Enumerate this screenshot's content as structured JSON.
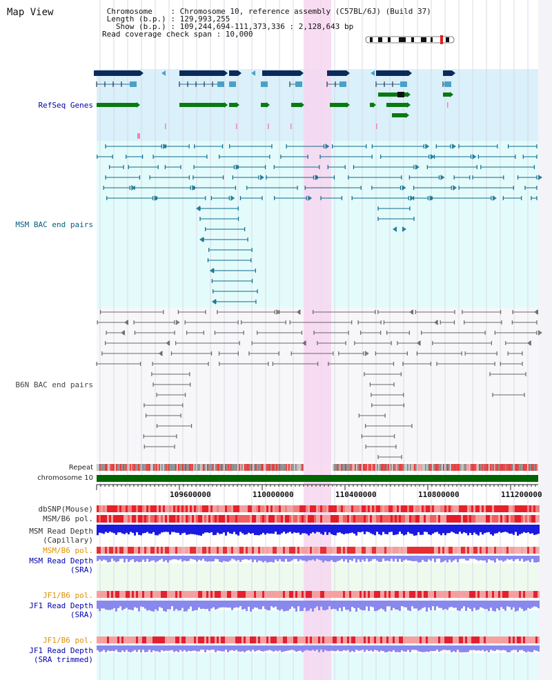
{
  "header": {
    "title": "Map View",
    "chromosome_line": " Chromosome    : Chromosome 10, reference assembly (C57BL/6J) (Build 37)",
    "length_line": " Length (b.p.) : 129,993,255",
    "show_line": "   Show (b.p.) : 109,244,694-111,373,336 : 2,128,643 bp",
    "coverage_line": "Read coverage check span : 10,000"
  },
  "tracks": {
    "refseq": "RefSeq Genes",
    "msm_bac": "MSM BAC end pairs",
    "b6n_bac": "B6N BAC end pairs",
    "repeat": "Repeat",
    "chromosome": "chromosome 10",
    "dbsnp": "dbSNP(Mouse)",
    "msm_b6_pol_1": "MSM/B6 pol.",
    "msm_read_depth_cap": "MSM Read Depth\n(Capillary)",
    "msm_b6_pol_2": "MSM/B6 pol.",
    "msm_read_depth_sra": "MSM Read Depth\n(SRA)",
    "jf1_b6_pol_1": "JF1/B6 pol.",
    "jf1_read_depth_sra": "JF1 Read Depth\n(SRA)",
    "jf1_b6_pol_2": "JF1/B6 pol.",
    "jf1_read_depth_trim": "JF1 Read Depth\n(SRA trimmed)"
  },
  "axis": {
    "ticks": [
      "109600000",
      "110000000",
      "110400000",
      "110800000",
      "111200000"
    ]
  },
  "colors": {
    "refseq_bg": "#daf0fa",
    "msm_bg": "#e4fbfb",
    "b6n_bg": "#f7f7fa",
    "highlight": "#f7d6f0",
    "chromosome_bar": "#006600",
    "msm_color": "#0a6a8a",
    "b6n_color": "#666666",
    "gene_dark": "#0b2a5a",
    "gene_light": "#4aa0c8",
    "gene_green": "#0a7a10",
    "depth_blue": "#1a1ae0",
    "depth_light": "#8888ee",
    "pol_red": "#e8202a"
  }
}
